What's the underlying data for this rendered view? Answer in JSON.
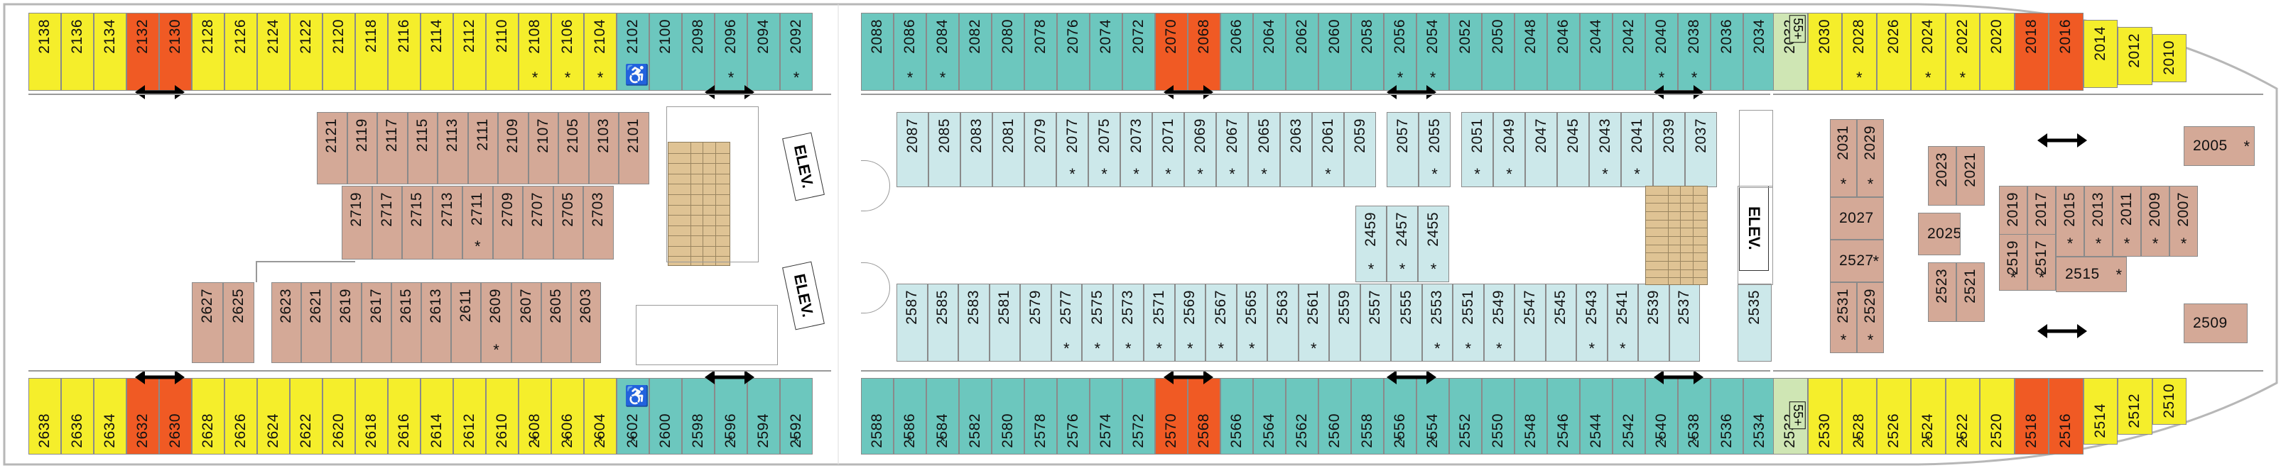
{
  "colors": {
    "yellow": "#f5ee2b",
    "orange": "#f05a24",
    "teal": "#6cc7be",
    "tan": "#d4a997",
    "light_teal": "#cce8ea",
    "green": "#cfe6b4",
    "hull": "#b7b7b7"
  },
  "labels": {
    "elevator": "ELEV.",
    "age_55": "55+",
    "accessible_icon": "wheelchair-icon",
    "connecting_icon": "double-arrow-icon",
    "star": "*"
  },
  "rows": [
    {
      "name": "top-row",
      "cabins": [
        {
          "id": "2138",
          "c": "yellow"
        },
        {
          "id": "2136",
          "c": "yellow"
        },
        {
          "id": "2134",
          "c": "yellow"
        },
        {
          "id": "2132",
          "c": "orange"
        },
        {
          "id": "2130",
          "c": "orange"
        },
        {
          "id": "2128",
          "c": "yellow"
        },
        {
          "id": "2126",
          "c": "yellow"
        },
        {
          "id": "2124",
          "c": "yellow"
        },
        {
          "id": "2122",
          "c": "yellow"
        },
        {
          "id": "2120",
          "c": "yellow"
        },
        {
          "id": "2118",
          "c": "yellow"
        },
        {
          "id": "2116",
          "c": "yellow"
        },
        {
          "id": "2114",
          "c": "yellow"
        },
        {
          "id": "2112",
          "c": "yellow"
        },
        {
          "id": "2110",
          "c": "yellow"
        },
        {
          "id": "2108",
          "c": "yellow",
          "s": true
        },
        {
          "id": "2106",
          "c": "yellow",
          "s": true
        },
        {
          "id": "2104",
          "c": "yellow",
          "s": true
        },
        {
          "id": "2102",
          "c": "teal",
          "s": true,
          "acc": true
        },
        {
          "id": "2100",
          "c": "teal"
        },
        {
          "id": "2098",
          "c": "teal"
        },
        {
          "id": "2096",
          "c": "teal",
          "s": true
        },
        {
          "id": "2094",
          "c": "teal"
        },
        {
          "id": "2092",
          "c": "teal",
          "s": true
        },
        {
          "id": "2088",
          "c": "teal"
        },
        {
          "id": "2086",
          "c": "teal",
          "s": true
        },
        {
          "id": "2084",
          "c": "teal",
          "s": true
        },
        {
          "id": "2082",
          "c": "teal"
        },
        {
          "id": "2080",
          "c": "teal"
        },
        {
          "id": "2078",
          "c": "teal"
        },
        {
          "id": "2076",
          "c": "teal"
        },
        {
          "id": "2074",
          "c": "teal"
        },
        {
          "id": "2072",
          "c": "teal"
        },
        {
          "id": "2070",
          "c": "orange"
        },
        {
          "id": "2068",
          "c": "orange"
        },
        {
          "id": "2066",
          "c": "teal"
        },
        {
          "id": "2064",
          "c": "teal"
        },
        {
          "id": "2062",
          "c": "teal"
        },
        {
          "id": "2060",
          "c": "teal"
        },
        {
          "id": "2058",
          "c": "teal"
        },
        {
          "id": "2056",
          "c": "teal",
          "s": true
        },
        {
          "id": "2054",
          "c": "teal",
          "s": true
        },
        {
          "id": "2052",
          "c": "teal"
        },
        {
          "id": "2050",
          "c": "teal"
        },
        {
          "id": "2048",
          "c": "teal"
        },
        {
          "id": "2046",
          "c": "teal"
        },
        {
          "id": "2044",
          "c": "teal"
        },
        {
          "id": "2042",
          "c": "teal"
        },
        {
          "id": "2040",
          "c": "teal",
          "s": true
        },
        {
          "id": "2038",
          "c": "teal",
          "s": true
        },
        {
          "id": "2036",
          "c": "teal"
        },
        {
          "id": "2034",
          "c": "teal"
        },
        {
          "id": "2032",
          "c": "green",
          "p55": true
        },
        {
          "id": "2030",
          "c": "yellow"
        },
        {
          "id": "2028",
          "c": "yellow",
          "s": true
        },
        {
          "id": "2026",
          "c": "yellow"
        },
        {
          "id": "2024",
          "c": "yellow",
          "s": true
        },
        {
          "id": "2022",
          "c": "yellow",
          "s": true
        },
        {
          "id": "2020",
          "c": "yellow"
        },
        {
          "id": "2018",
          "c": "orange"
        },
        {
          "id": "2016",
          "c": "orange"
        },
        {
          "id": "2014",
          "c": "yellow"
        },
        {
          "id": "2012",
          "c": "yellow"
        },
        {
          "id": "2010",
          "c": "yellow"
        }
      ]
    },
    {
      "name": "bottom-row",
      "cabins": [
        {
          "id": "2638",
          "c": "yellow"
        },
        {
          "id": "2636",
          "c": "yellow"
        },
        {
          "id": "2634",
          "c": "yellow"
        },
        {
          "id": "2632",
          "c": "orange"
        },
        {
          "id": "2630",
          "c": "orange"
        },
        {
          "id": "2628",
          "c": "yellow"
        },
        {
          "id": "2626",
          "c": "yellow"
        },
        {
          "id": "2624",
          "c": "yellow"
        },
        {
          "id": "2622",
          "c": "yellow"
        },
        {
          "id": "2620",
          "c": "yellow"
        },
        {
          "id": "2618",
          "c": "yellow"
        },
        {
          "id": "2616",
          "c": "yellow"
        },
        {
          "id": "2614",
          "c": "yellow"
        },
        {
          "id": "2612",
          "c": "yellow"
        },
        {
          "id": "2610",
          "c": "yellow"
        },
        {
          "id": "2608",
          "c": "yellow",
          "s": true
        },
        {
          "id": "2606",
          "c": "yellow",
          "s": true
        },
        {
          "id": "2604",
          "c": "yellow",
          "s": true
        },
        {
          "id": "2602",
          "c": "teal",
          "s": true,
          "acc": true
        },
        {
          "id": "2600",
          "c": "teal"
        },
        {
          "id": "2598",
          "c": "teal"
        },
        {
          "id": "2596",
          "c": "teal",
          "s": true
        },
        {
          "id": "2594",
          "c": "teal"
        },
        {
          "id": "2592",
          "c": "teal",
          "s": true
        },
        {
          "id": "2588",
          "c": "teal"
        },
        {
          "id": "2586",
          "c": "teal",
          "s": true
        },
        {
          "id": "2584",
          "c": "teal",
          "s": true
        },
        {
          "id": "2582",
          "c": "teal"
        },
        {
          "id": "2580",
          "c": "teal"
        },
        {
          "id": "2578",
          "c": "teal"
        },
        {
          "id": "2576",
          "c": "teal"
        },
        {
          "id": "2574",
          "c": "teal"
        },
        {
          "id": "2572",
          "c": "teal"
        },
        {
          "id": "2570",
          "c": "orange"
        },
        {
          "id": "2568",
          "c": "orange"
        },
        {
          "id": "2566",
          "c": "teal"
        },
        {
          "id": "2564",
          "c": "teal"
        },
        {
          "id": "2562",
          "c": "teal"
        },
        {
          "id": "2560",
          "c": "teal"
        },
        {
          "id": "2558",
          "c": "teal"
        },
        {
          "id": "2556",
          "c": "teal",
          "s": true
        },
        {
          "id": "2554",
          "c": "teal",
          "s": true
        },
        {
          "id": "2552",
          "c": "teal"
        },
        {
          "id": "2550",
          "c": "teal"
        },
        {
          "id": "2548",
          "c": "teal"
        },
        {
          "id": "2546",
          "c": "teal"
        },
        {
          "id": "2544",
          "c": "teal"
        },
        {
          "id": "2542",
          "c": "teal"
        },
        {
          "id": "2540",
          "c": "teal",
          "s": true
        },
        {
          "id": "2538",
          "c": "teal",
          "s": true
        },
        {
          "id": "2536",
          "c": "teal"
        },
        {
          "id": "2534",
          "c": "teal"
        },
        {
          "id": "2532",
          "c": "green",
          "p55": true
        },
        {
          "id": "2530",
          "c": "yellow"
        },
        {
          "id": "2528",
          "c": "yellow",
          "s": true
        },
        {
          "id": "2526",
          "c": "yellow"
        },
        {
          "id": "2524",
          "c": "yellow",
          "s": true
        },
        {
          "id": "2522",
          "c": "yellow",
          "s": true
        },
        {
          "id": "2520",
          "c": "yellow"
        },
        {
          "id": "2518",
          "c": "orange"
        },
        {
          "id": "2516",
          "c": "orange"
        },
        {
          "id": "2514",
          "c": "yellow"
        },
        {
          "id": "2512",
          "c": "yellow"
        },
        {
          "id": "2510",
          "c": "yellow"
        }
      ]
    }
  ],
  "inner_blocks": [
    {
      "name": "interior-2101-row",
      "c": "tan",
      "cabins": [
        {
          "id": "2121"
        },
        {
          "id": "2119"
        },
        {
          "id": "2117"
        },
        {
          "id": "2115"
        },
        {
          "id": "2113"
        },
        {
          "id": "2111"
        },
        {
          "id": "2109"
        },
        {
          "id": "2107"
        },
        {
          "id": "2105"
        },
        {
          "id": "2103"
        },
        {
          "id": "2101"
        }
      ]
    },
    {
      "name": "interior-2703-row",
      "c": "tan",
      "cabins": [
        {
          "id": "2719"
        },
        {
          "id": "2717"
        },
        {
          "id": "2715"
        },
        {
          "id": "2713"
        },
        {
          "id": "2711",
          "s": true
        },
        {
          "id": "2709"
        },
        {
          "id": "2707"
        },
        {
          "id": "2705"
        },
        {
          "id": "2703"
        }
      ]
    },
    {
      "name": "interior-2603-row",
      "c": "tan",
      "cabins": [
        {
          "id": "2627"
        },
        {
          "id": "2625"
        },
        {
          "id": "2623"
        },
        {
          "id": "2621"
        },
        {
          "id": "2619"
        },
        {
          "id": "2617"
        },
        {
          "id": "2615"
        },
        {
          "id": "2613"
        },
        {
          "id": "2611"
        },
        {
          "id": "2609",
          "s": true
        },
        {
          "id": "2607"
        },
        {
          "id": "2605"
        },
        {
          "id": "2603"
        }
      ]
    },
    {
      "name": "interior-2087-row",
      "c": "light_teal",
      "cabins": [
        {
          "id": "2087"
        },
        {
          "id": "2085"
        },
        {
          "id": "2083"
        },
        {
          "id": "2081"
        },
        {
          "id": "2079"
        },
        {
          "id": "2077",
          "s": true
        },
        {
          "id": "2075",
          "s": true
        },
        {
          "id": "2073",
          "s": true
        },
        {
          "id": "2071",
          "s": true
        },
        {
          "id": "2069",
          "s": true
        },
        {
          "id": "2067",
          "s": true
        },
        {
          "id": "2065",
          "s": true
        },
        {
          "id": "2063"
        },
        {
          "id": "2061",
          "s": true
        },
        {
          "id": "2059"
        },
        {
          "id": "2057"
        },
        {
          "id": "2055",
          "s": true
        },
        {
          "id": "2051",
          "s": true
        },
        {
          "id": "2049",
          "s": true
        },
        {
          "id": "2047"
        },
        {
          "id": "2045"
        },
        {
          "id": "2043",
          "s": true
        },
        {
          "id": "2041",
          "s": true
        },
        {
          "id": "2039"
        },
        {
          "id": "2037"
        }
      ]
    },
    {
      "name": "interior-2587-row",
      "c": "light_teal",
      "cabins": [
        {
          "id": "2587"
        },
        {
          "id": "2585"
        },
        {
          "id": "2583"
        },
        {
          "id": "2581"
        },
        {
          "id": "2579"
        },
        {
          "id": "2577",
          "s": true
        },
        {
          "id": "2575",
          "s": true
        },
        {
          "id": "2573",
          "s": true
        },
        {
          "id": "2571",
          "s": true
        },
        {
          "id": "2569",
          "s": true
        },
        {
          "id": "2567",
          "s": true
        },
        {
          "id": "2565",
          "s": true
        },
        {
          "id": "2563"
        },
        {
          "id": "2561",
          "s": true
        },
        {
          "id": "2559"
        },
        {
          "id": "2557"
        },
        {
          "id": "2555"
        },
        {
          "id": "2553",
          "s": true
        },
        {
          "id": "2551",
          "s": true
        },
        {
          "id": "2549",
          "s": true
        },
        {
          "id": "2547"
        },
        {
          "id": "2545"
        },
        {
          "id": "2543",
          "s": true
        },
        {
          "id": "2541",
          "s": true
        },
        {
          "id": "2539"
        },
        {
          "id": "2537"
        }
      ]
    },
    {
      "name": "interior-2459-row",
      "c": "light_teal",
      "cabins": [
        {
          "id": "2459",
          "s": true
        },
        {
          "id": "2457",
          "s": true
        },
        {
          "id": "2455",
          "s": true
        }
      ]
    },
    {
      "name": "interior-2535",
      "c": "light_teal",
      "cabins": [
        {
          "id": "2535"
        }
      ]
    },
    {
      "name": "forward-interior",
      "c": "tan",
      "cabins": [
        {
          "id": "2031",
          "s": true
        },
        {
          "id": "2029",
          "s": true
        },
        {
          "id": "2027"
        },
        {
          "id": "2527",
          "s": true
        },
        {
          "id": "2531",
          "s": true
        },
        {
          "id": "2529",
          "s": true
        },
        {
          "id": "2025"
        },
        {
          "id": "2023"
        },
        {
          "id": "2021"
        },
        {
          "id": "2523"
        },
        {
          "id": "2521"
        },
        {
          "id": "2019",
          "s": true
        },
        {
          "id": "2017",
          "s": true
        },
        {
          "id": "2519",
          "s": true
        },
        {
          "id": "2517",
          "s": true
        },
        {
          "id": "2015",
          "s": true
        },
        {
          "id": "2013",
          "s": true
        },
        {
          "id": "2011",
          "s": true
        },
        {
          "id": "2009",
          "s": true
        },
        {
          "id": "2007",
          "s": true
        },
        {
          "id": "2515",
          "s": true
        },
        {
          "id": "2005",
          "s": true
        },
        {
          "id": "2509"
        }
      ]
    }
  ]
}
